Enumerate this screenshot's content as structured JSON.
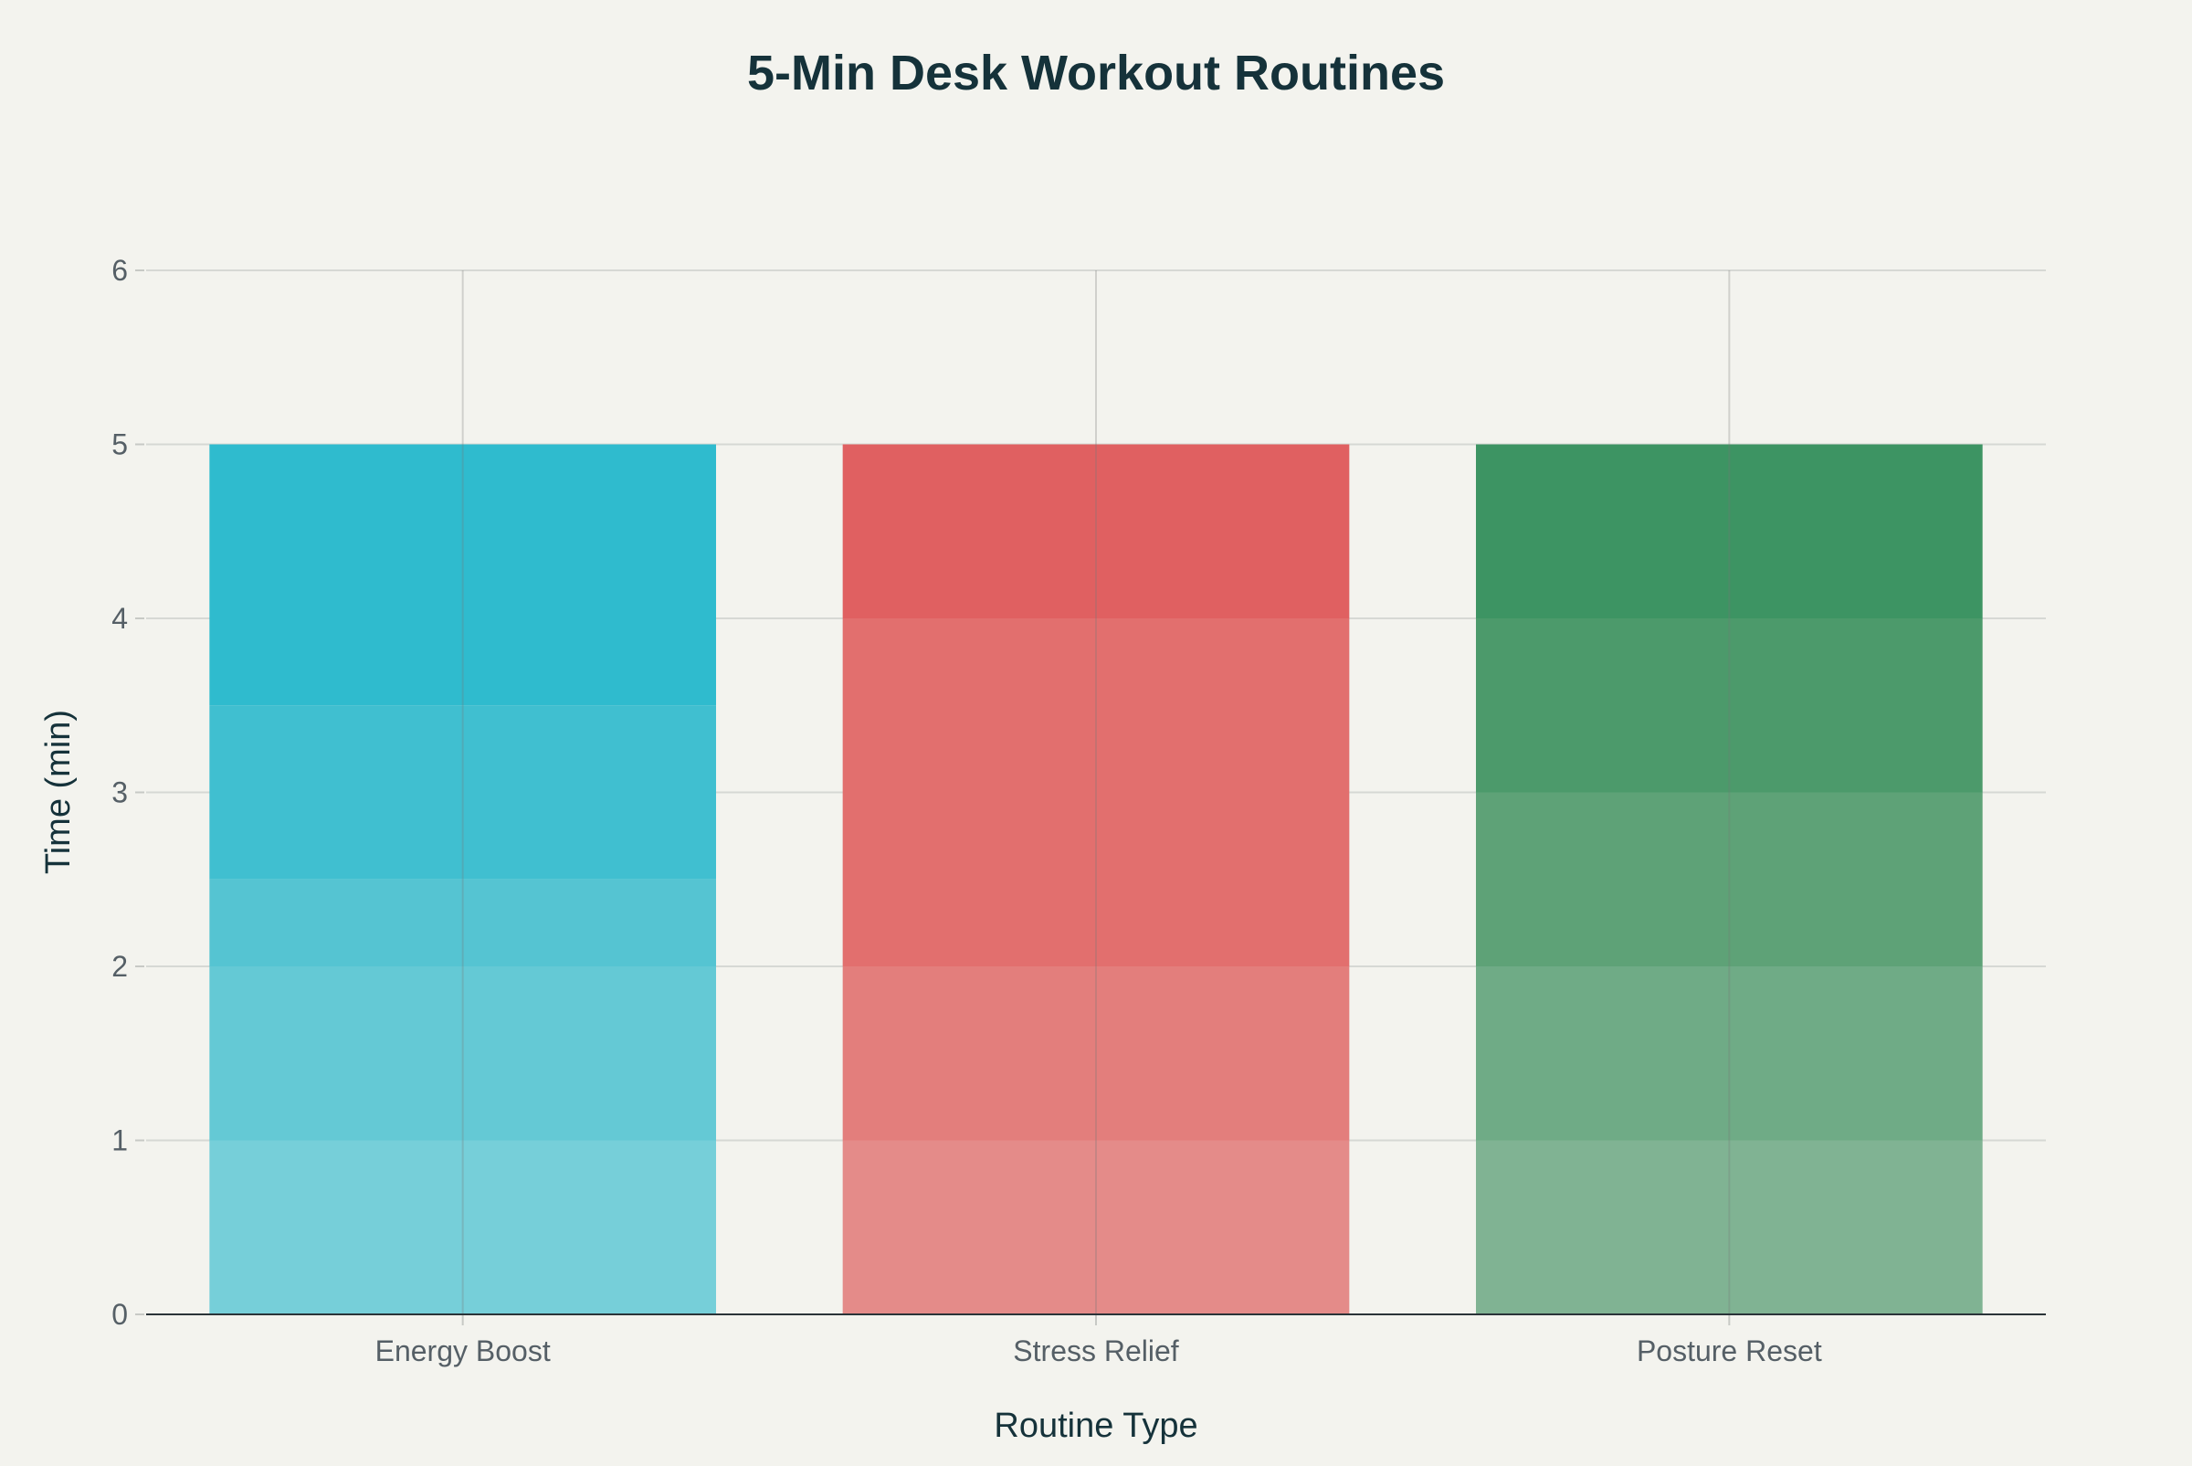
{
  "chart_data": {
    "type": "bar",
    "stacked": true,
    "title": "5-Min Desk Workout Routines",
    "xlabel": "Routine Type",
    "ylabel": "Time (min)",
    "ylim": [
      0,
      6
    ],
    "yticks": [
      0,
      1,
      2,
      3,
      4,
      5,
      6
    ],
    "grid": true,
    "legend": "none",
    "categories": [
      "Energy Boost",
      "Stress Relief",
      "Posture Reset"
    ],
    "series": [
      {
        "values": [
          1,
          1,
          1
        ],
        "colors": [
          "#76cfd9",
          "#e48b89",
          "#80b393"
        ]
      },
      {
        "values": [
          1,
          1,
          1
        ],
        "colors": [
          "#64c9d5",
          "#e37e7c",
          "#6fab86"
        ]
      },
      {
        "values": [
          0.5,
          1,
          1
        ],
        "colors": [
          "#55c4d2",
          "#e26f6e",
          "#5ea277"
        ]
      },
      {
        "values": [
          1,
          1,
          1
        ],
        "colors": [
          "#40bfd0",
          "#e26f6e",
          "#4c9a6b"
        ]
      },
      {
        "values": [
          1.5,
          1,
          1
        ],
        "colors": [
          "#2fbbce",
          "#e06061",
          "#3d9463"
        ]
      }
    ]
  }
}
